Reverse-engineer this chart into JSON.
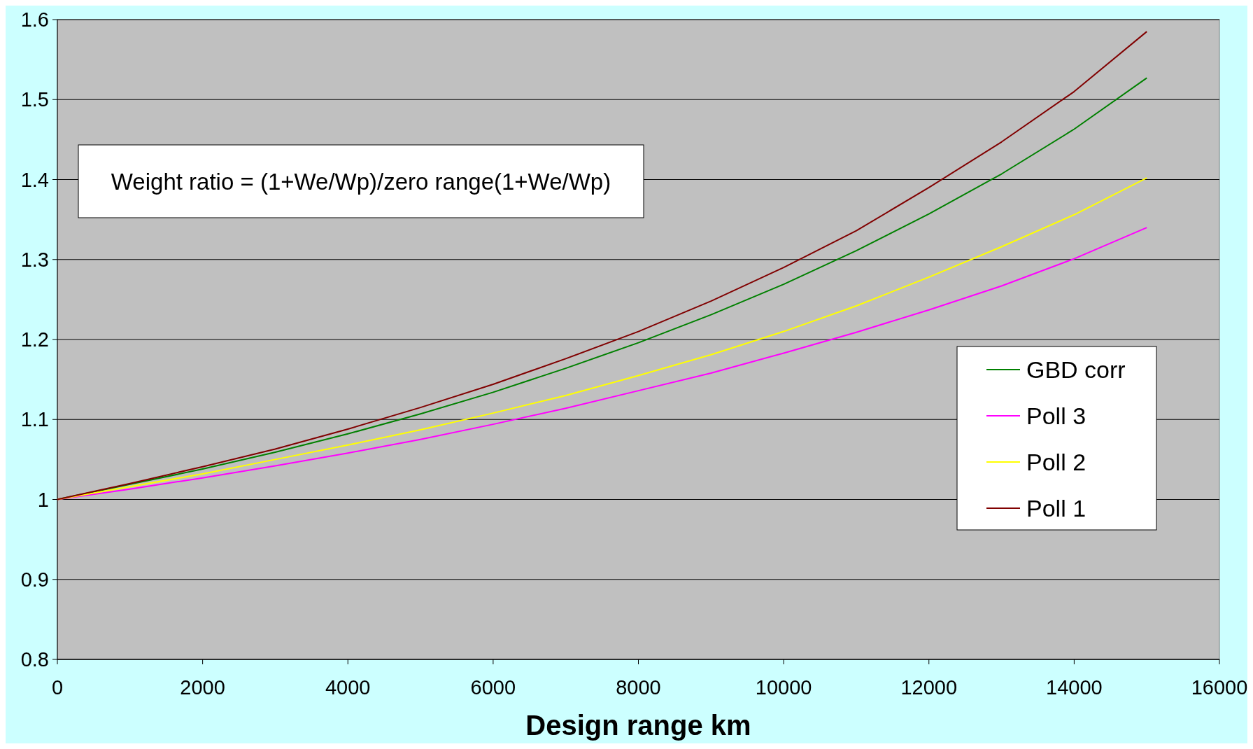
{
  "chart_data": {
    "type": "line",
    "xlabel": "Design range km",
    "x": [
      0,
      1000,
      2000,
      3000,
      4000,
      5000,
      6000,
      7000,
      8000,
      9000,
      10000,
      11000,
      12000,
      13000,
      14000,
      15000
    ],
    "series": [
      {
        "name": "GBD corr",
        "color": "#008000",
        "values": [
          1,
          1.019,
          1.038,
          1.059,
          1.082,
          1.107,
          1.134,
          1.164,
          1.196,
          1.231,
          1.269,
          1.311,
          1.357,
          1.407,
          1.463,
          1.527
        ]
      },
      {
        "name": "Poll 3",
        "color": "#ff00ff",
        "values": [
          1,
          1.013,
          1.027,
          1.042,
          1.058,
          1.075,
          1.094,
          1.114,
          1.136,
          1.158,
          1.183,
          1.209,
          1.237,
          1.267,
          1.301,
          1.34
        ]
      },
      {
        "name": "Poll 2",
        "color": "#ffff00",
        "values": [
          1,
          1.016,
          1.032,
          1.05,
          1.068,
          1.087,
          1.108,
          1.13,
          1.155,
          1.181,
          1.21,
          1.242,
          1.278,
          1.316,
          1.356,
          1.402
        ]
      },
      {
        "name": "Poll 1",
        "color": "#800000",
        "values": [
          1,
          1.02,
          1.041,
          1.063,
          1.088,
          1.115,
          1.144,
          1.176,
          1.21,
          1.248,
          1.29,
          1.336,
          1.39,
          1.447,
          1.51,
          1.585
        ]
      }
    ],
    "xlim": [
      0,
      16000
    ],
    "xticks": [
      0,
      2000,
      4000,
      6000,
      8000,
      10000,
      12000,
      14000,
      16000
    ],
    "ylim": [
      0.8,
      1.6
    ],
    "yticks": [
      0.8,
      0.9,
      1,
      1.1,
      1.2,
      1.3,
      1.4,
      1.5,
      1.6
    ],
    "grid": "y",
    "legend": "right",
    "marker": "none",
    "annotations": [
      "Weight ratio = (1+We/Wp)/zero range(1+We/Wp)"
    ]
  }
}
